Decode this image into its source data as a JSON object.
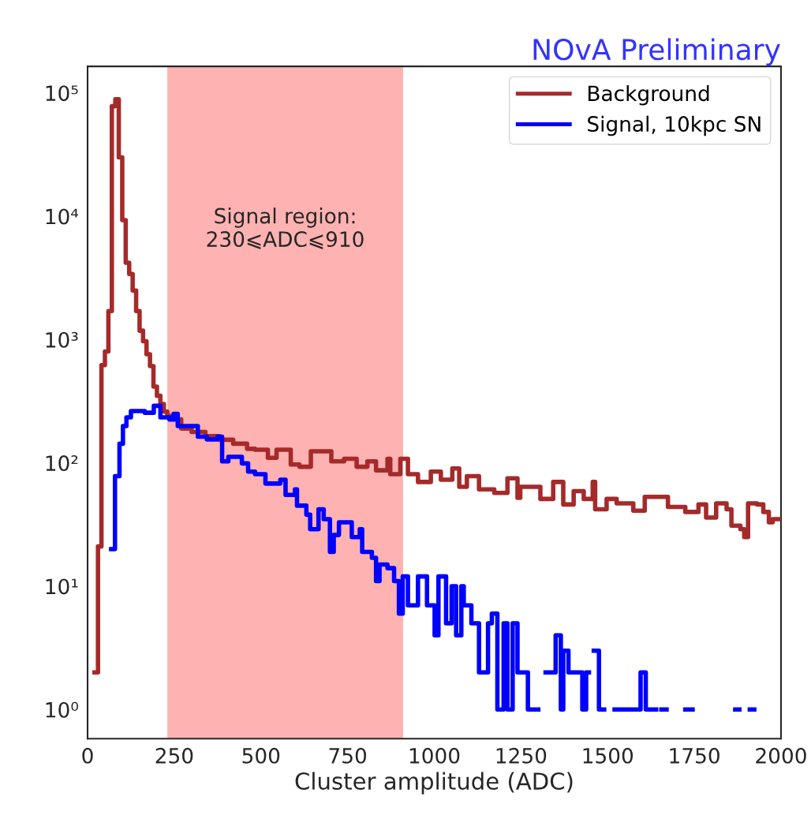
{
  "chart_data": {
    "type": "step",
    "title": "NOvA Preliminary",
    "xlabel": "Cluster amplitude (ADC)",
    "xlim": [
      0,
      2000
    ],
    "xticks": [
      0,
      250,
      500,
      750,
      1000,
      1250,
      1500,
      1750,
      2000
    ],
    "log": "y",
    "ylim": [
      0.58,
      164000
    ],
    "yticks": [
      {
        "value": 1,
        "label": "10⁰"
      },
      {
        "value": 10,
        "label": "10¹"
      },
      {
        "value": 100,
        "label": "10²"
      },
      {
        "value": 1000,
        "label": "10³"
      },
      {
        "value": 10000,
        "label": "10⁴"
      },
      {
        "value": 100000,
        "label": "10⁵"
      }
    ],
    "grid": false,
    "legend": "top right",
    "line_style": "solid",
    "bands": [
      {
        "axis": "x",
        "from": 230,
        "to": 910,
        "color": "#ffb2b2"
      }
    ],
    "annotations": [
      "Signal region:\n230⩽ADC⩽910"
    ],
    "series": [
      {
        "name": "Background",
        "color": "#a52a2a",
        "x": [
          20,
          30,
          40,
          50,
          60,
          70,
          80,
          90,
          100,
          110,
          120,
          130,
          140,
          150,
          160,
          170,
          180,
          190,
          200,
          210,
          220,
          230,
          250,
          270,
          300,
          340,
          380,
          420,
          460,
          483,
          520,
          545,
          586,
          611,
          644,
          703,
          740,
          776,
          807,
          832,
          865,
          873,
          902,
          924,
          953,
          990,
          1019,
          1052,
          1072,
          1094,
          1129,
          1173,
          1211,
          1240,
          1248,
          1306,
          1343,
          1372,
          1402,
          1431,
          1457,
          1464,
          1497,
          1526,
          1574,
          1607,
          1674,
          1724,
          1762,
          1784,
          1813,
          1843,
          1857,
          1883,
          1894,
          1905,
          1931,
          1949,
          1965,
          1976,
          1995
        ],
        "values": [
          2,
          21,
          620,
          800,
          1700,
          78000,
          89000,
          30000,
          9300,
          4200,
          3400,
          2500,
          1700,
          1180,
          970,
          760,
          610,
          415,
          350,
          300,
          260,
          240,
          225,
          190,
          178,
          165,
          154,
          143,
          130,
          128,
          110,
          128,
          97,
          93,
          124,
          103,
          108,
          93,
          103,
          87,
          108,
          81,
          108,
          81,
          70,
          85,
          73,
          90,
          64,
          78,
          61,
          57,
          75,
          52,
          64,
          51,
          70,
          46,
          59,
          51,
          70,
          42,
          51,
          47,
          41,
          53,
          44,
          40,
          46,
          36,
          47,
          42,
          31,
          29,
          25,
          47,
          46,
          40,
          33,
          35,
          35
        ]
      },
      {
        "name": "Signal, 10kpc SN",
        "color": "#0000ff",
        "x": [
          68,
          79,
          92,
          102,
          112,
          125,
          165,
          191,
          210,
          236,
          248,
          260,
          318,
          344,
          375,
          388,
          406,
          445,
          463,
          483,
          513,
          556,
          571,
          598,
          604,
          631,
          642,
          666,
          681,
          699,
          710,
          725,
          762,
          785,
          792,
          820,
          832,
          842,
          865,
          884,
          898,
          909,
          924,
          953,
          979,
          1001,
          1012,
          1034,
          1050,
          1063,
          1078,
          1085,
          1107,
          1129,
          1155,
          1166,
          1182,
          1200,
          1211,
          1226,
          1240,
          1248,
          1270,
          1280,
          1290,
          1300,
          1321,
          1350,
          1365,
          1372,
          1387,
          1427,
          1438,
          1446,
          1460,
          1475,
          1490,
          1520,
          1530,
          1540,
          1555,
          1560,
          1575,
          1580,
          1595,
          1610,
          1620,
          1626,
          1640,
          1655,
          1670,
          1724,
          1745,
          1868,
          1880,
          1910,
          1923
        ],
        "values": [
          20,
          78,
          143,
          199,
          234,
          263,
          255,
          290,
          234,
          225,
          250,
          199,
          163,
          155,
          163,
          103,
          112,
          99,
          85,
          81,
          68,
          73,
          55,
          61,
          45,
          38,
          29,
          42,
          35,
          19,
          26,
          33,
          25,
          29,
          19,
          17,
          11,
          15,
          14,
          11,
          6,
          12,
          7,
          12,
          7,
          4,
          12,
          5,
          10,
          4,
          10,
          7,
          5,
          2,
          5,
          6,
          1,
          5,
          1,
          5,
          2,
          2,
          1,
          null,
          1,
          null,
          2,
          4,
          1,
          3,
          2,
          1,
          2,
          null,
          3,
          1,
          null,
          1,
          null,
          1,
          null,
          1,
          null,
          1,
          2,
          1,
          null,
          1,
          null,
          1,
          null,
          1,
          null,
          1,
          null,
          1,
          1
        ]
      }
    ]
  }
}
